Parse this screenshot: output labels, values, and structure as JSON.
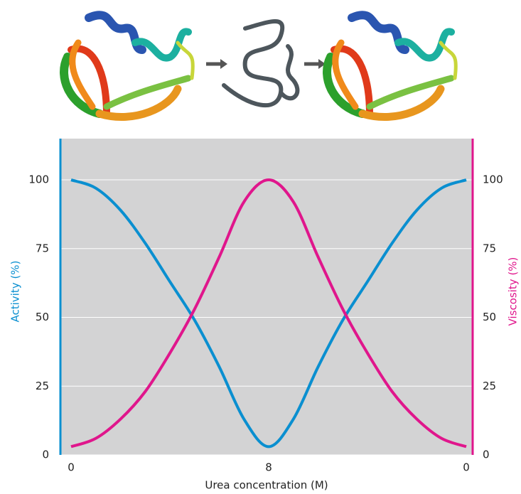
{
  "chart_data": {
    "type": "line",
    "x_label": "Urea concentration (M)",
    "y_label": "Activity (%)",
    "y2_label": "Viscosity (%)",
    "categories": [
      "0",
      null,
      null,
      null,
      null,
      null,
      null,
      null,
      "8",
      null,
      null,
      null,
      null,
      null,
      null,
      null,
      "0"
    ],
    "series": [
      {
        "name": "Activity (%)",
        "color": "#0a8fd0",
        "values": [
          100,
          97,
          89,
          77,
          63,
          49,
          32,
          13,
          3,
          13,
          32,
          49,
          63,
          77,
          89,
          97,
          100
        ]
      },
      {
        "name": "Viscosity (%)",
        "color": "#e0168c",
        "axis": "y2",
        "values": [
          3,
          6,
          13,
          23,
          37,
          53,
          72,
          92,
          100,
          92,
          72,
          53,
          37,
          23,
          13,
          6,
          3
        ]
      }
    ],
    "ylim": [
      0,
      115
    ],
    "yticks": [
      0,
      25,
      50,
      75,
      100
    ],
    "y2lim": [
      0,
      115
    ],
    "y2ticks": [
      0,
      25,
      50,
      75,
      100
    ],
    "grid": true
  }
}
